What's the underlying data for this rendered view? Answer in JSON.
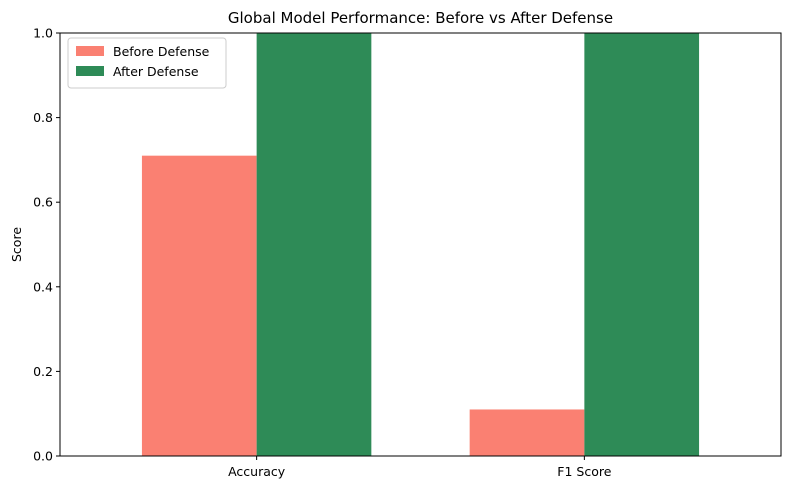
{
  "chart_data": {
    "type": "bar",
    "title": "Global Model Performance: Before vs After Defense",
    "xlabel": "",
    "ylabel": "Score",
    "categories": [
      "Accuracy",
      "F1 Score"
    ],
    "series": [
      {
        "name": "Before Defense",
        "values": [
          0.71,
          0.11
        ],
        "color": "#fa8072"
      },
      {
        "name": "After Defense",
        "values": [
          1.0,
          1.0
        ],
        "color": "#2e8b57"
      }
    ],
    "ylim": [
      0,
      1.0
    ],
    "yticks": [
      "0.0",
      "0.2",
      "0.4",
      "0.6",
      "0.8",
      "1.0"
    ],
    "grid": false,
    "legend_position": "top-left"
  }
}
